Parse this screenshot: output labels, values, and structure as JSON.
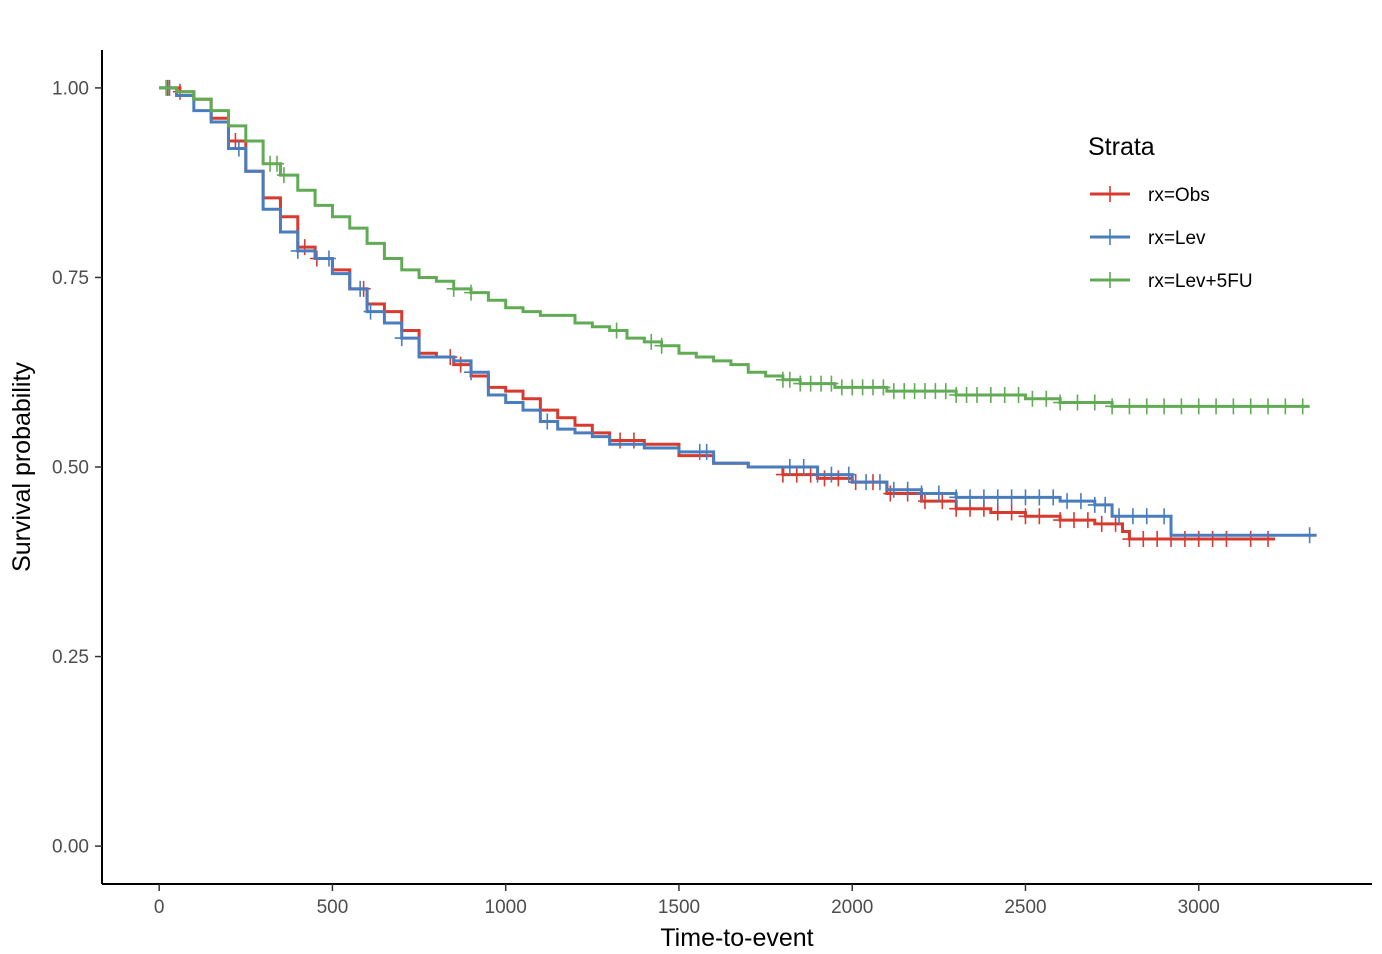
{
  "chart_data": {
    "type": "line",
    "title": "",
    "xlabel": "Time-to-event",
    "ylabel": "Survival probability",
    "xlim": [
      -165,
      3500
    ],
    "ylim": [
      -0.05,
      1.05
    ],
    "x_ticks": [
      0,
      500,
      1000,
      1500,
      2000,
      2500,
      3000
    ],
    "x_tick_labels": [
      "0",
      "500",
      "1000",
      "1500",
      "2000",
      "2500",
      "3000"
    ],
    "y_ticks": [
      0.0,
      0.25,
      0.5,
      0.75,
      1.0
    ],
    "y_tick_labels": [
      "0.00",
      "0.25",
      "0.50",
      "0.75",
      "1.00"
    ],
    "grid": false,
    "legend": {
      "title": "Strata",
      "position": "top-right"
    },
    "series": [
      {
        "name": "rx=Obs",
        "color": "#d73a2f",
        "points": [
          [
            0,
            1.0
          ],
          [
            60,
            0.995
          ],
          [
            100,
            0.985
          ],
          [
            150,
            0.96
          ],
          [
            200,
            0.93
          ],
          [
            250,
            0.89
          ],
          [
            300,
            0.855
          ],
          [
            350,
            0.83
          ],
          [
            400,
            0.79
          ],
          [
            450,
            0.775
          ],
          [
            500,
            0.76
          ],
          [
            550,
            0.735
          ],
          [
            600,
            0.715
          ],
          [
            650,
            0.705
          ],
          [
            700,
            0.68
          ],
          [
            750,
            0.65
          ],
          [
            800,
            0.645
          ],
          [
            850,
            0.635
          ],
          [
            900,
            0.62
          ],
          [
            950,
            0.605
          ],
          [
            1000,
            0.6
          ],
          [
            1050,
            0.59
          ],
          [
            1100,
            0.575
          ],
          [
            1150,
            0.565
          ],
          [
            1200,
            0.555
          ],
          [
            1250,
            0.545
          ],
          [
            1300,
            0.535
          ],
          [
            1400,
            0.53
          ],
          [
            1500,
            0.515
          ],
          [
            1600,
            0.505
          ],
          [
            1700,
            0.5
          ],
          [
            1800,
            0.49
          ],
          [
            1900,
            0.485
          ],
          [
            2000,
            0.48
          ],
          [
            2100,
            0.465
          ],
          [
            2200,
            0.455
          ],
          [
            2300,
            0.445
          ],
          [
            2400,
            0.44
          ],
          [
            2500,
            0.435
          ],
          [
            2600,
            0.43
          ],
          [
            2700,
            0.425
          ],
          [
            2780,
            0.415
          ],
          [
            2800,
            0.405
          ],
          [
            3220,
            0.405
          ]
        ],
        "censor_x": [
          25,
          60,
          220,
          420,
          455,
          590,
          840,
          870,
          1330,
          1370,
          1800,
          1840,
          1880,
          1920,
          1960,
          2010,
          2060,
          2110,
          2160,
          2210,
          2260,
          2300,
          2340,
          2380,
          2420,
          2460,
          2500,
          2540,
          2600,
          2640,
          2680,
          2720,
          2760,
          2800,
          2840,
          2880,
          2920,
          2960,
          3000,
          3040,
          3080,
          3150,
          3200
        ]
      },
      {
        "name": "rx=Lev",
        "color": "#4a7dbd",
        "points": [
          [
            0,
            1.0
          ],
          [
            50,
            0.99
          ],
          [
            100,
            0.97
          ],
          [
            150,
            0.955
          ],
          [
            200,
            0.92
          ],
          [
            250,
            0.89
          ],
          [
            300,
            0.84
          ],
          [
            350,
            0.81
          ],
          [
            400,
            0.785
          ],
          [
            450,
            0.775
          ],
          [
            500,
            0.755
          ],
          [
            550,
            0.735
          ],
          [
            600,
            0.705
          ],
          [
            650,
            0.69
          ],
          [
            700,
            0.67
          ],
          [
            750,
            0.645
          ],
          [
            800,
            0.645
          ],
          [
            850,
            0.64
          ],
          [
            900,
            0.625
          ],
          [
            950,
            0.595
          ],
          [
            1000,
            0.585
          ],
          [
            1050,
            0.575
          ],
          [
            1100,
            0.56
          ],
          [
            1150,
            0.55
          ],
          [
            1200,
            0.545
          ],
          [
            1250,
            0.54
          ],
          [
            1300,
            0.53
          ],
          [
            1400,
            0.525
          ],
          [
            1500,
            0.52
          ],
          [
            1600,
            0.505
          ],
          [
            1700,
            0.5
          ],
          [
            1800,
            0.5
          ],
          [
            1900,
            0.49
          ],
          [
            2000,
            0.48
          ],
          [
            2100,
            0.47
          ],
          [
            2200,
            0.465
          ],
          [
            2300,
            0.46
          ],
          [
            2500,
            0.46
          ],
          [
            2600,
            0.455
          ],
          [
            2700,
            0.45
          ],
          [
            2750,
            0.435
          ],
          [
            2910,
            0.435
          ],
          [
            2920,
            0.41
          ],
          [
            3340,
            0.41
          ]
        ],
        "censor_x": [
          30,
          230,
          400,
          490,
          580,
          610,
          700,
          900,
          1120,
          1560,
          1580,
          1820,
          1860,
          1900,
          1940,
          1990,
          2040,
          2080,
          2120,
          2160,
          2200,
          2250,
          2300,
          2340,
          2380,
          2420,
          2460,
          2500,
          2540,
          2580,
          2620,
          2660,
          2700,
          2730,
          2770,
          2810,
          2850,
          2900,
          3320
        ]
      },
      {
        "name": "rx=Lev+5FU",
        "color": "#62ab55",
        "points": [
          [
            0,
            1.0
          ],
          [
            50,
            0.995
          ],
          [
            100,
            0.985
          ],
          [
            150,
            0.97
          ],
          [
            200,
            0.95
          ],
          [
            250,
            0.93
          ],
          [
            300,
            0.9
          ],
          [
            350,
            0.885
          ],
          [
            400,
            0.865
          ],
          [
            450,
            0.845
          ],
          [
            500,
            0.83
          ],
          [
            550,
            0.815
          ],
          [
            600,
            0.795
          ],
          [
            650,
            0.775
          ],
          [
            700,
            0.76
          ],
          [
            750,
            0.75
          ],
          [
            800,
            0.745
          ],
          [
            850,
            0.735
          ],
          [
            900,
            0.73
          ],
          [
            950,
            0.72
          ],
          [
            1000,
            0.71
          ],
          [
            1050,
            0.705
          ],
          [
            1100,
            0.7
          ],
          [
            1150,
            0.7
          ],
          [
            1200,
            0.69
          ],
          [
            1250,
            0.685
          ],
          [
            1300,
            0.68
          ],
          [
            1350,
            0.67
          ],
          [
            1400,
            0.665
          ],
          [
            1450,
            0.66
          ],
          [
            1500,
            0.65
          ],
          [
            1550,
            0.645
          ],
          [
            1600,
            0.64
          ],
          [
            1650,
            0.635
          ],
          [
            1700,
            0.625
          ],
          [
            1750,
            0.62
          ],
          [
            1800,
            0.615
          ],
          [
            1850,
            0.61
          ],
          [
            1900,
            0.61
          ],
          [
            1950,
            0.605
          ],
          [
            2000,
            0.605
          ],
          [
            2100,
            0.6
          ],
          [
            2200,
            0.6
          ],
          [
            2300,
            0.595
          ],
          [
            2400,
            0.595
          ],
          [
            2500,
            0.59
          ],
          [
            2600,
            0.585
          ],
          [
            2700,
            0.585
          ],
          [
            2750,
            0.58
          ],
          [
            3320,
            0.58
          ]
        ],
        "censor_x": [
          20,
          320,
          340,
          360,
          850,
          900,
          1320,
          1420,
          1450,
          1800,
          1820,
          1850,
          1880,
          1910,
          1940,
          1970,
          2000,
          2030,
          2060,
          2090,
          2120,
          2150,
          2180,
          2210,
          2240,
          2270,
          2300,
          2330,
          2360,
          2400,
          2440,
          2480,
          2520,
          2560,
          2600,
          2650,
          2700,
          2750,
          2800,
          2850,
          2900,
          2950,
          3000,
          3050,
          3100,
          3150,
          3200,
          3250,
          3300
        ]
      }
    ]
  }
}
